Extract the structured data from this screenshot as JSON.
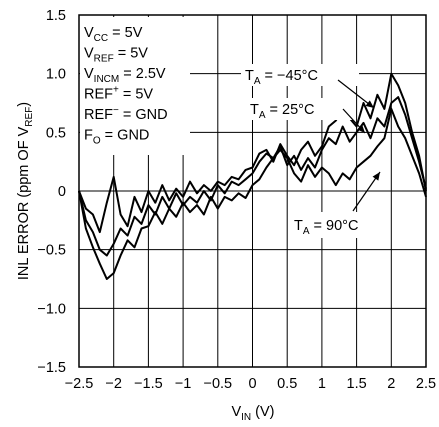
{
  "chart_data": {
    "type": "line",
    "title": "",
    "xlabel": "V",
    "xlabel_sub": "IN",
    "xlabel_unit": " (V)",
    "ylabel_parts": [
      "INL ERROR (ppm OF V",
      "REF",
      ")"
    ],
    "xlim": [
      -2.5,
      2.5
    ],
    "ylim": [
      -1.5,
      1.5
    ],
    "x_ticks": [
      "−2.5",
      "−2",
      "−1.5",
      "−1",
      "−0.5",
      "0",
      "0.5",
      "1",
      "1.5",
      "2",
      "2.5"
    ],
    "y_ticks": [
      "1.5",
      "1.0",
      "0.5",
      "0",
      "−0.5",
      "−1.0",
      "−1.5"
    ],
    "grid": true,
    "conditions": [
      {
        "main": "V",
        "sub": "CC",
        "rest": " = 5V"
      },
      {
        "main": "V",
        "sub": "REF",
        "rest": " = 5V"
      },
      {
        "main": "V",
        "sub": "INCM",
        "rest": " = 2.5V"
      },
      {
        "main": "REF",
        "sup": "+",
        "rest": " = 5V"
      },
      {
        "main": "REF",
        "sup": "−",
        "rest": " = GND"
      },
      {
        "main": "F",
        "sub": "O",
        "rest": " = GND"
      }
    ],
    "annotations": [
      {
        "main": "T",
        "sub": "A",
        "rest": " = −45°C"
      },
      {
        "main": "T",
        "sub": "A",
        "rest": " = 25°C"
      },
      {
        "main": "T",
        "sub": "A",
        "rest": " = 90°C"
      }
    ],
    "series": [
      {
        "x": [
          -2.5,
          -2.4,
          -2.3,
          -2.2,
          -2.1,
          -2.0,
          -1.9,
          -1.8,
          -1.7,
          -1.6,
          -1.5,
          -1.4,
          -1.3,
          -1.2,
          -1.1,
          -1.0,
          -0.9,
          -0.8,
          -0.7,
          -0.6,
          -0.5,
          -0.4,
          -0.3,
          -0.2,
          -0.1,
          0.0,
          0.1,
          0.2,
          0.3,
          0.4,
          0.5,
          0.6,
          0.7,
          0.8,
          0.9,
          1.0,
          1.1,
          1.2,
          1.3,
          1.4,
          1.5,
          1.6,
          1.7,
          1.8,
          1.9,
          2.0,
          2.1,
          2.2,
          2.3,
          2.4,
          2.5
        ],
        "y": [
          0.0,
          -0.32,
          -0.48,
          -0.62,
          -0.75,
          -0.7,
          -0.55,
          -0.42,
          -0.48,
          -0.32,
          -0.3,
          -0.18,
          -0.28,
          -0.15,
          -0.22,
          -0.1,
          -0.18,
          -0.12,
          -0.2,
          -0.05,
          -0.15,
          -0.05,
          -0.08,
          -0.02,
          -0.06,
          0.05,
          0.1,
          0.2,
          0.28,
          0.35,
          0.28,
          0.15,
          0.08,
          0.22,
          0.12,
          0.2,
          0.15,
          0.05,
          0.15,
          0.1,
          0.2,
          0.25,
          0.3,
          0.38,
          0.45,
          0.7,
          0.55,
          0.45,
          0.3,
          0.15,
          -0.05
        ]
      },
      {
        "x": [
          -2.5,
          -2.4,
          -2.3,
          -2.2,
          -2.1,
          -2.0,
          -1.9,
          -1.8,
          -1.7,
          -1.6,
          -1.5,
          -1.4,
          -1.3,
          -1.2,
          -1.1,
          -1.0,
          -0.9,
          -0.8,
          -0.7,
          -0.6,
          -0.5,
          -0.4,
          -0.3,
          -0.2,
          -0.1,
          0.0,
          0.1,
          0.2,
          0.3,
          0.4,
          0.5,
          0.6,
          0.7,
          0.8,
          0.9,
          1.0,
          1.1,
          1.2,
          1.3,
          1.4,
          1.5,
          1.6,
          1.7,
          1.8,
          1.9,
          2.0,
          2.1,
          2.2,
          2.3,
          2.4,
          2.5
        ],
        "y": [
          0.0,
          -0.25,
          -0.35,
          -0.5,
          -0.55,
          -0.45,
          -0.32,
          -0.38,
          -0.22,
          -0.28,
          -0.12,
          -0.2,
          -0.05,
          -0.15,
          -0.02,
          -0.12,
          -0.05,
          -0.1,
          0.0,
          -0.08,
          0.05,
          -0.02,
          0.08,
          0.05,
          0.1,
          0.15,
          0.25,
          0.32,
          0.28,
          0.38,
          0.22,
          0.3,
          0.18,
          0.28,
          0.2,
          0.35,
          0.45,
          0.4,
          0.55,
          0.42,
          0.5,
          0.58,
          0.45,
          0.62,
          0.55,
          0.75,
          0.8,
          0.65,
          0.45,
          0.25,
          0.02
        ]
      },
      {
        "x": [
          -2.5,
          -2.4,
          -2.3,
          -2.2,
          -2.1,
          -2.0,
          -1.9,
          -1.8,
          -1.7,
          -1.6,
          -1.5,
          -1.4,
          -1.3,
          -1.2,
          -1.1,
          -1.0,
          -0.9,
          -0.8,
          -0.7,
          -0.6,
          -0.5,
          -0.4,
          -0.3,
          -0.2,
          -0.1,
          0.0,
          0.1,
          0.2,
          0.3,
          0.4,
          0.5,
          0.6,
          0.7,
          0.8,
          0.9,
          1.0,
          1.1,
          1.2,
          1.3,
          1.4,
          1.5,
          1.6,
          1.7,
          1.8,
          1.9,
          2.0,
          2.1,
          2.2,
          2.3,
          2.4,
          2.5
        ],
        "y": [
          0.0,
          -0.15,
          -0.2,
          -0.35,
          -0.1,
          0.12,
          -0.2,
          -0.3,
          -0.05,
          -0.18,
          0.0,
          -0.1,
          0.05,
          -0.08,
          0.02,
          -0.05,
          0.08,
          -0.02,
          0.05,
          0.0,
          0.08,
          0.05,
          0.12,
          0.1,
          0.18,
          0.2,
          0.32,
          0.35,
          0.25,
          0.4,
          0.3,
          0.22,
          0.35,
          0.42,
          0.3,
          0.38,
          0.55,
          0.6,
          0.7,
          0.62,
          0.55,
          0.75,
          0.62,
          0.82,
          0.7,
          1.0,
          0.9,
          0.75,
          0.5,
          0.3,
          0.0
        ]
      }
    ]
  }
}
